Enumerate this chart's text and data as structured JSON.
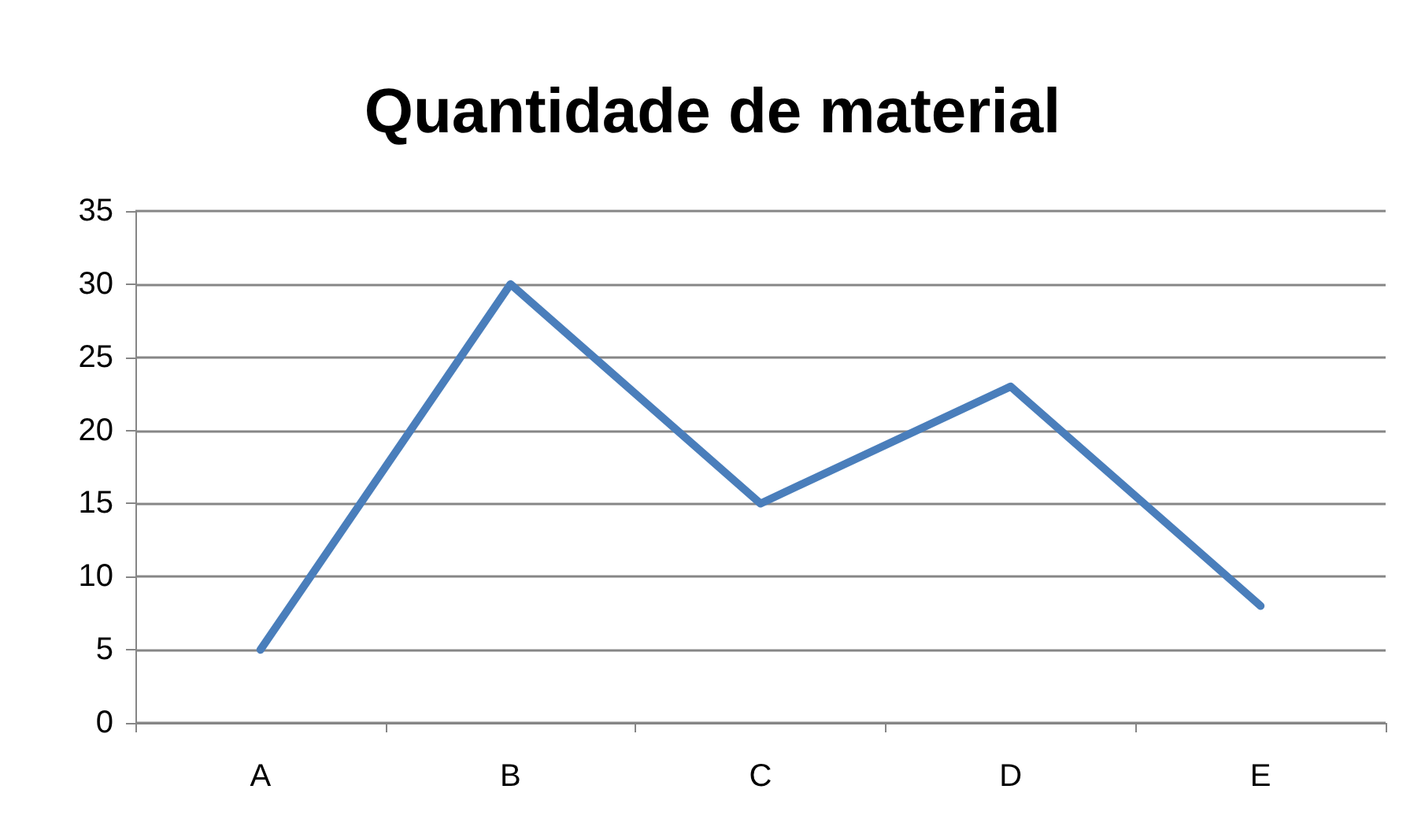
{
  "chart_data": {
    "type": "line",
    "title": "Quantidade de material",
    "categories": [
      "A",
      "B",
      "C",
      "D",
      "E"
    ],
    "series": [
      {
        "color": "#4a7ebb",
        "values": [
          5,
          30,
          15,
          23,
          8
        ]
      }
    ],
    "ylim": [
      0,
      35
    ],
    "yticks": [
      0,
      5,
      10,
      15,
      20,
      25,
      30,
      35
    ],
    "grid": "y",
    "marker": "none",
    "line_style": "solid"
  }
}
